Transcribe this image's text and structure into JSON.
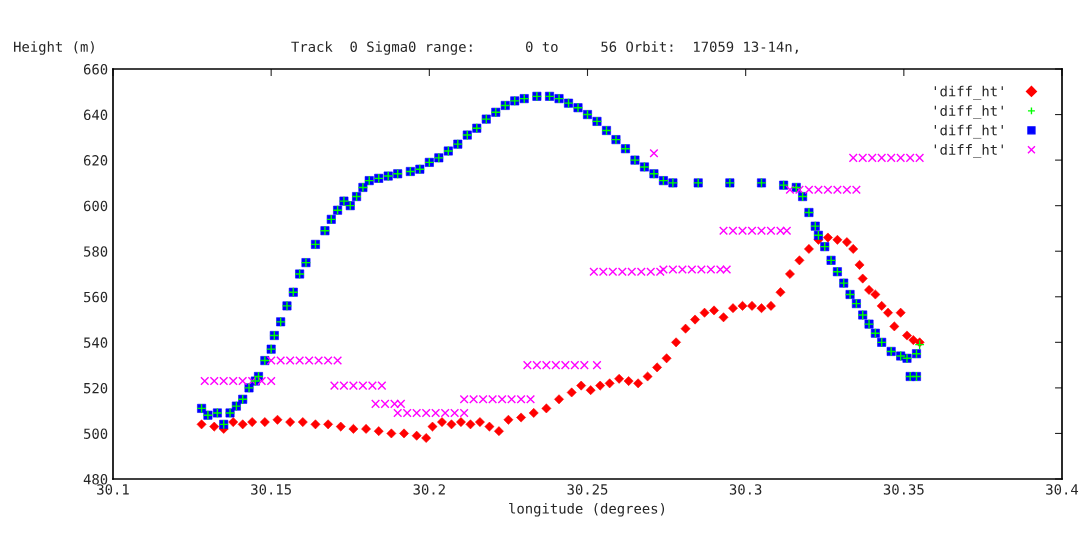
{
  "chart_data": {
    "type": "scatter",
    "title": "Track  0 Sigma0 range:      0 to     56 Orbit:  17059 13-14n,",
    "ylabel": "Height (m)",
    "xlabel": "longitude (degrees)",
    "xlim": [
      30.1,
      30.4
    ],
    "xticks": [
      30.1,
      30.15,
      30.2,
      30.25,
      30.3,
      30.35,
      30.4
    ],
    "ylim": [
      480,
      660
    ],
    "yticks": [
      480,
      500,
      520,
      540,
      560,
      580,
      600,
      620,
      640,
      660
    ],
    "grid": false,
    "legend": "top right",
    "series": [
      {
        "name": "'diff_ht'",
        "color": "#ff0000",
        "marker": "diamond",
        "x": [
          30.128,
          30.132,
          30.135,
          30.138,
          30.141,
          30.144,
          30.148,
          30.152,
          30.156,
          30.16,
          30.164,
          30.168,
          30.172,
          30.176,
          30.18,
          30.184,
          30.188,
          30.192,
          30.196,
          30.199,
          30.201,
          30.204,
          30.207,
          30.21,
          30.213,
          30.216,
          30.219,
          30.222,
          30.225,
          30.229,
          30.233,
          30.237,
          30.241,
          30.245,
          30.248,
          30.251,
          30.254,
          30.257,
          30.26,
          30.263,
          30.266,
          30.269,
          30.272,
          30.275,
          30.278,
          30.281,
          30.284,
          30.287,
          30.29,
          30.293,
          30.296,
          30.299,
          30.302,
          30.305,
          30.308,
          30.311,
          30.314,
          30.317,
          30.32,
          30.323,
          30.326,
          30.329,
          30.332,
          30.334,
          30.336,
          30.337,
          30.339,
          30.341,
          30.343,
          30.345,
          30.347,
          30.349,
          30.351,
          30.353,
          30.355
        ],
        "values": [
          504,
          503,
          502,
          505,
          504,
          505,
          505,
          506,
          505,
          505,
          504,
          504,
          503,
          502,
          502,
          501,
          500,
          500,
          499,
          498,
          503,
          505,
          504,
          505,
          504,
          505,
          503,
          501,
          506,
          507,
          509,
          511,
          515,
          518,
          521,
          519,
          521,
          522,
          524,
          523,
          522,
          525,
          529,
          533,
          540,
          546,
          550,
          553,
          554,
          551,
          555,
          556,
          556,
          555,
          556,
          562,
          570,
          576,
          581,
          585,
          586,
          585,
          584,
          581,
          574,
          568,
          563,
          561,
          556,
          553,
          547,
          553,
          543,
          541,
          540
        ]
      },
      {
        "name": "'diff_ht'",
        "color": "#00ff00",
        "marker": "cross",
        "x": [
          30.128,
          30.13,
          30.133,
          30.135,
          30.137,
          30.139,
          30.141,
          30.143,
          30.145,
          30.146,
          30.148,
          30.15,
          30.151,
          30.153,
          30.155,
          30.157,
          30.159,
          30.161,
          30.164,
          30.167,
          30.169,
          30.171,
          30.173,
          30.175,
          30.177,
          30.179,
          30.181,
          30.184,
          30.187,
          30.19,
          30.194,
          30.197,
          30.2,
          30.203,
          30.206,
          30.209,
          30.212,
          30.215,
          30.218,
          30.221,
          30.224,
          30.227,
          30.23,
          30.234,
          30.238,
          30.241,
          30.244,
          30.247,
          30.25,
          30.253,
          30.256,
          30.259,
          30.262,
          30.265,
          30.268,
          30.271,
          30.274,
          30.277,
          30.285,
          30.295,
          30.305,
          30.312,
          30.316,
          30.318,
          30.32,
          30.322,
          30.323,
          30.325,
          30.327,
          30.329,
          30.331,
          30.333,
          30.335,
          30.337,
          30.339,
          30.341,
          30.343,
          30.346,
          30.349,
          30.351,
          30.352,
          30.354,
          30.354,
          30.355
        ],
        "values": [
          511,
          508,
          509,
          504,
          509,
          512,
          515,
          520,
          523,
          525,
          532,
          537,
          543,
          549,
          556,
          562,
          570,
          575,
          583,
          589,
          594,
          598,
          602,
          600,
          604,
          608,
          611,
          612,
          613,
          614,
          615,
          616,
          619,
          621,
          624,
          627,
          631,
          634,
          638,
          641,
          644,
          646,
          647,
          648,
          648,
          647,
          645,
          643,
          640,
          637,
          633,
          629,
          625,
          620,
          617,
          614,
          611,
          610,
          610,
          610,
          610,
          609,
          608,
          604,
          597,
          591,
          587,
          582,
          576,
          571,
          566,
          561,
          557,
          552,
          548,
          544,
          540,
          536,
          534,
          533,
          525,
          525,
          535,
          539
        ]
      },
      {
        "name": "'diff_ht'",
        "color": "#0000ff",
        "marker": "square",
        "x": [
          30.128,
          30.13,
          30.133,
          30.135,
          30.137,
          30.139,
          30.141,
          30.143,
          30.145,
          30.146,
          30.148,
          30.15,
          30.151,
          30.153,
          30.155,
          30.157,
          30.159,
          30.161,
          30.164,
          30.167,
          30.169,
          30.171,
          30.173,
          30.175,
          30.177,
          30.179,
          30.181,
          30.184,
          30.187,
          30.19,
          30.194,
          30.197,
          30.2,
          30.203,
          30.206,
          30.209,
          30.212,
          30.215,
          30.218,
          30.221,
          30.224,
          30.227,
          30.23,
          30.234,
          30.238,
          30.241,
          30.244,
          30.247,
          30.25,
          30.253,
          30.256,
          30.259,
          30.262,
          30.265,
          30.268,
          30.271,
          30.274,
          30.277,
          30.285,
          30.295,
          30.305,
          30.312,
          30.316,
          30.318,
          30.32,
          30.322,
          30.323,
          30.325,
          30.327,
          30.329,
          30.331,
          30.333,
          30.335,
          30.337,
          30.339,
          30.341,
          30.343,
          30.346,
          30.349,
          30.351,
          30.352,
          30.354,
          30.354
        ],
        "values": [
          511,
          508,
          509,
          504,
          509,
          512,
          515,
          520,
          523,
          525,
          532,
          537,
          543,
          549,
          556,
          562,
          570,
          575,
          583,
          589,
          594,
          598,
          602,
          600,
          604,
          608,
          611,
          612,
          613,
          614,
          615,
          616,
          619,
          621,
          624,
          627,
          631,
          634,
          638,
          641,
          644,
          646,
          647,
          648,
          648,
          647,
          645,
          643,
          640,
          637,
          633,
          629,
          625,
          620,
          617,
          614,
          611,
          610,
          610,
          610,
          610,
          609,
          608,
          604,
          597,
          591,
          587,
          582,
          576,
          571,
          566,
          561,
          557,
          552,
          548,
          544,
          540,
          536,
          534,
          533,
          525,
          525,
          535
        ]
      },
      {
        "name": "'diff_ht'",
        "color": "#ff00ff",
        "marker": "x",
        "x": [
          30.129,
          30.132,
          30.135,
          30.138,
          30.141,
          30.144,
          30.147,
          30.15,
          30.15,
          30.153,
          30.156,
          30.159,
          30.162,
          30.165,
          30.168,
          30.171,
          30.17,
          30.173,
          30.176,
          30.179,
          30.182,
          30.185,
          30.183,
          30.186,
          30.189,
          30.191,
          30.19,
          30.193,
          30.196,
          30.199,
          30.202,
          30.205,
          30.208,
          30.211,
          30.211,
          30.214,
          30.217,
          30.22,
          30.223,
          30.226,
          30.229,
          30.232,
          30.231,
          30.234,
          30.237,
          30.24,
          30.243,
          30.246,
          30.249,
          30.253,
          30.252,
          30.255,
          30.258,
          30.261,
          30.264,
          30.267,
          30.27,
          30.273,
          30.274,
          30.277,
          30.28,
          30.283,
          30.286,
          30.289,
          30.292,
          30.294,
          30.293,
          30.296,
          30.299,
          30.302,
          30.305,
          30.308,
          30.311,
          30.313,
          30.271,
          30.314,
          30.317,
          30.32,
          30.323,
          30.326,
          30.329,
          30.332,
          30.335,
          30.334,
          30.337,
          30.34,
          30.343,
          30.346,
          30.349,
          30.352,
          30.355
        ],
        "values": [
          523,
          523,
          523,
          523,
          523,
          523,
          523,
          523,
          532,
          532,
          532,
          532,
          532,
          532,
          532,
          532,
          521,
          521,
          521,
          521,
          521,
          521,
          513,
          513,
          513,
          513,
          509,
          509,
          509,
          509,
          509,
          509,
          509,
          509,
          515,
          515,
          515,
          515,
          515,
          515,
          515,
          515,
          530,
          530,
          530,
          530,
          530,
          530,
          530,
          530,
          571,
          571,
          571,
          571,
          571,
          571,
          571,
          571,
          572,
          572,
          572,
          572,
          572,
          572,
          572,
          572,
          589,
          589,
          589,
          589,
          589,
          589,
          589,
          589,
          623,
          607,
          607,
          607,
          607,
          607,
          607,
          607,
          607,
          621,
          621,
          621,
          621,
          621,
          621,
          621,
          621
        ]
      }
    ]
  }
}
